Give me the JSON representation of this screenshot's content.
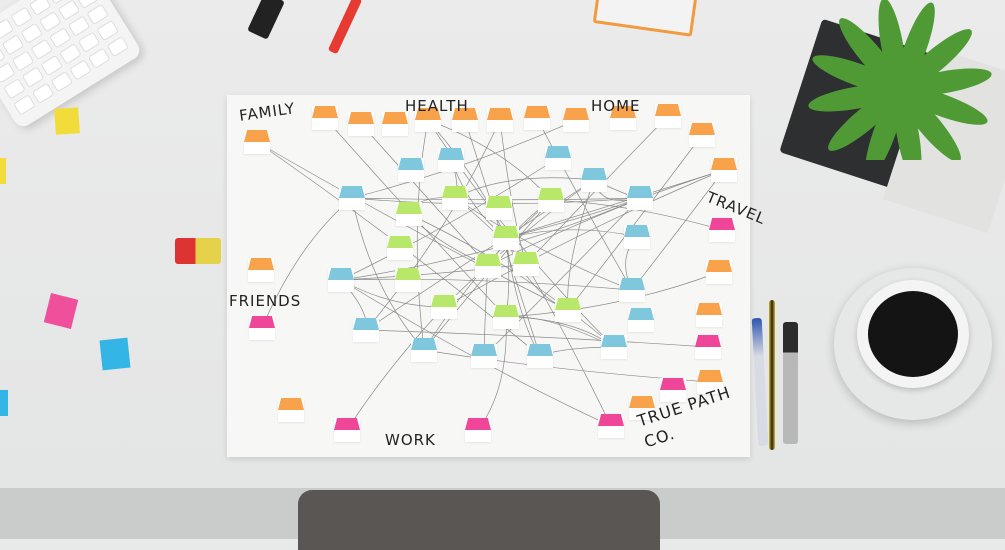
{
  "board": {
    "headings": {
      "family": "FAMILY",
      "health": "HEALTH",
      "home": "HOME",
      "travel": "TRAVEL",
      "friends": "FRIENDS",
      "work": "WORK",
      "brand": "TRUE PATH CO."
    }
  },
  "colors": {
    "orange": "#f9a24c",
    "blue": "#7fc7dc",
    "green": "#b7e86a",
    "pink": "#f0469a",
    "desk": "#e8e9e9"
  }
}
